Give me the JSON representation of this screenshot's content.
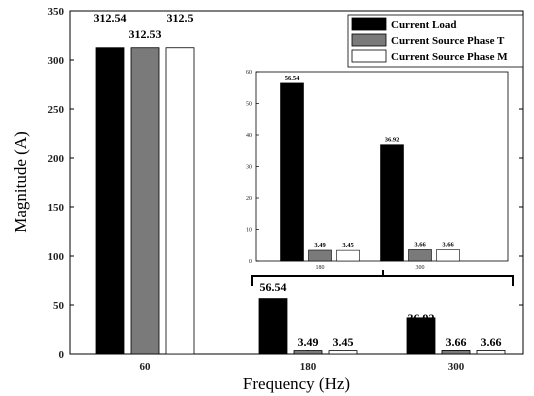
{
  "chart_data": [
    {
      "type": "bar",
      "categories": [
        "60",
        "180",
        "300"
      ],
      "xlabel": "Frequency (Hz)",
      "ylabel": "Magnitude (A)",
      "ylim": [
        0,
        350
      ],
      "yticks": [
        0,
        50,
        100,
        150,
        200,
        250,
        300,
        350
      ],
      "legend": "top-right",
      "series": [
        {
          "name": "Current Load",
          "color": "#000000",
          "values": [
            312.54,
            56.54,
            36.92
          ],
          "labels": [
            "312.54",
            "56.54",
            "36.92"
          ]
        },
        {
          "name": "Current Source Phase T",
          "color": "#7a7a7a",
          "values": [
            312.53,
            3.49,
            3.66
          ],
          "labels": [
            "312.53",
            "3.49",
            "3.66"
          ]
        },
        {
          "name": "Current Source Phase M",
          "color": "#ffffff",
          "values": [
            312.5,
            3.45,
            3.66
          ],
          "labels": [
            "312.5",
            "3.45",
            "3.66"
          ]
        }
      ]
    },
    {
      "type": "bar",
      "note": "inset zoom of 180 and 300 Hz",
      "categories": [
        "180",
        "300"
      ],
      "ylim": [
        0,
        60
      ],
      "yticks": [
        0,
        10,
        20,
        30,
        40,
        50,
        60
      ],
      "series": [
        {
          "name": "Current Load",
          "values": [
            56.54,
            36.92
          ],
          "labels": [
            "56.54",
            "36.92"
          ]
        },
        {
          "name": "Current Source Phase T",
          "values": [
            3.49,
            3.66
          ],
          "labels": [
            "3.49",
            "3.66"
          ]
        },
        {
          "name": "Current Source Phase M",
          "values": [
            3.45,
            3.66
          ],
          "labels": [
            "3.45",
            "3.66"
          ]
        }
      ]
    }
  ]
}
